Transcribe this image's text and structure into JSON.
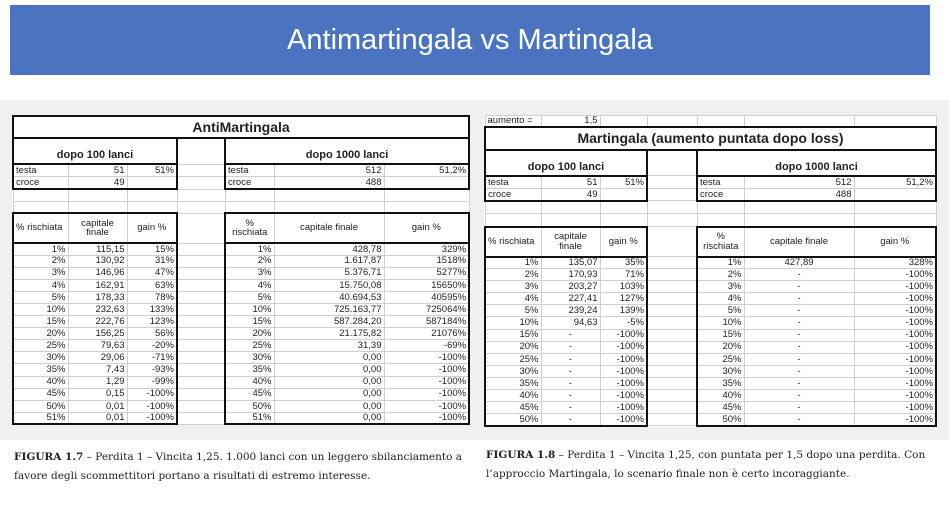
{
  "banner": {
    "title": "Antimartingala vs Martingala"
  },
  "left": {
    "title": "AntiMartingala",
    "h100": "dopo 100 lanci",
    "h1000": "dopo 1000 lanci",
    "testa": "testa",
    "croce": "croce",
    "t100": "51",
    "t100p": "51%",
    "c100": "49",
    "t1000": "512",
    "t1000p": "51,2%",
    "c1000": "488",
    "col_risk": "% rischiata",
    "col_risk2": "% rischiata",
    "col_cap": "capitale finale",
    "col_cap2": "capitale finale",
    "col_gain": "gain %",
    "rows": [
      [
        "1%",
        "115,15",
        "15%",
        "1%",
        "428,78",
        "329%"
      ],
      [
        "2%",
        "130,92",
        "31%",
        "2%",
        "1.617,87",
        "1518%"
      ],
      [
        "3%",
        "146,96",
        "47%",
        "3%",
        "5.376,71",
        "5277%"
      ],
      [
        "4%",
        "162,91",
        "63%",
        "4%",
        "15.750,08",
        "15650%"
      ],
      [
        "5%",
        "178,33",
        "78%",
        "5%",
        "40.694,53",
        "40595%"
      ],
      [
        "10%",
        "232,63",
        "133%",
        "10%",
        "725.163,77",
        "725064%"
      ],
      [
        "15%",
        "222,76",
        "123%",
        "15%",
        "587.284,20",
        "587184%"
      ],
      [
        "20%",
        "156,25",
        "56%",
        "20%",
        "21.175,82",
        "21076%"
      ],
      [
        "25%",
        "79,63",
        "-20%",
        "25%",
        "31,39",
        "-69%"
      ],
      [
        "30%",
        "29,06",
        "-71%",
        "30%",
        "0,00",
        "-100%"
      ],
      [
        "35%",
        "7,43",
        "-93%",
        "35%",
        "0,00",
        "-100%"
      ],
      [
        "40%",
        "1,29",
        "-99%",
        "40%",
        "0,00",
        "-100%"
      ],
      [
        "45%",
        "0,15",
        "-100%",
        "45%",
        "0,00",
        "-100%"
      ],
      [
        "50%",
        "0,01",
        "-100%",
        "50%",
        "0,00",
        "-100%"
      ],
      [
        "51%",
        "0,01",
        "-100%",
        "51%",
        "0,00",
        "-100%"
      ]
    ]
  },
  "right": {
    "aumento_label": "aumento =",
    "aumento": "1,5",
    "title": "Martingala (aumento puntata dopo loss)",
    "h100": "dopo 100 lanci",
    "h1000": "dopo 1000 lanci",
    "testa": "testa",
    "croce": "croce",
    "t100": "51",
    "t100p": "51%",
    "c100": "49",
    "t1000": "512",
    "t1000p": "51,2%",
    "c1000": "488",
    "col_risk": "% rischiata",
    "col_risk2": "% rischiata",
    "col_cap": "capitale finale",
    "col_cap2": "capitale finale",
    "col_gain": "gain %",
    "rows": [
      [
        "1%",
        "135,07",
        "35%",
        "1%",
        "427,89",
        "328%"
      ],
      [
        "2%",
        "170,93",
        "71%",
        "2%",
        "-",
        "-100%"
      ],
      [
        "3%",
        "203,27",
        "103%",
        "3%",
        "-",
        "-100%"
      ],
      [
        "4%",
        "227,41",
        "127%",
        "4%",
        "-",
        "-100%"
      ],
      [
        "5%",
        "239,24",
        "139%",
        "5%",
        "-",
        "-100%"
      ],
      [
        "10%",
        "94,63",
        "-5%",
        "10%",
        "-",
        "-100%"
      ],
      [
        "15%",
        "-",
        "-100%",
        "15%",
        "-",
        "-100%"
      ],
      [
        "20%",
        "-",
        "-100%",
        "20%",
        "-",
        "-100%"
      ],
      [
        "25%",
        "-",
        "-100%",
        "25%",
        "-",
        "-100%"
      ],
      [
        "30%",
        "-",
        "-100%",
        "30%",
        "-",
        "-100%"
      ],
      [
        "35%",
        "-",
        "-100%",
        "35%",
        "-",
        "-100%"
      ],
      [
        "40%",
        "-",
        "-100%",
        "40%",
        "-",
        "-100%"
      ],
      [
        "45%",
        "-",
        "-100%",
        "45%",
        "-",
        "-100%"
      ],
      [
        "50%",
        "-",
        "-100%",
        "50%",
        "-",
        "-100%"
      ]
    ]
  },
  "captions": {
    "fig7_label": "FIGURA 1.7",
    "fig7_text": " – Perdita 1 – Vincita 1,25. 1.000 lanci con un leggero sbilanciamento a favore degli scommettitori portano a risultati di estremo interesse.",
    "fig8_label": "FIGURA 1.8",
    "fig8_text": " – Perdita 1 – Vincita 1,25, con puntata per 1,5 dopo una perdita. Con l’approccio Martingala, lo scenario finale non è certo incoraggiante."
  }
}
